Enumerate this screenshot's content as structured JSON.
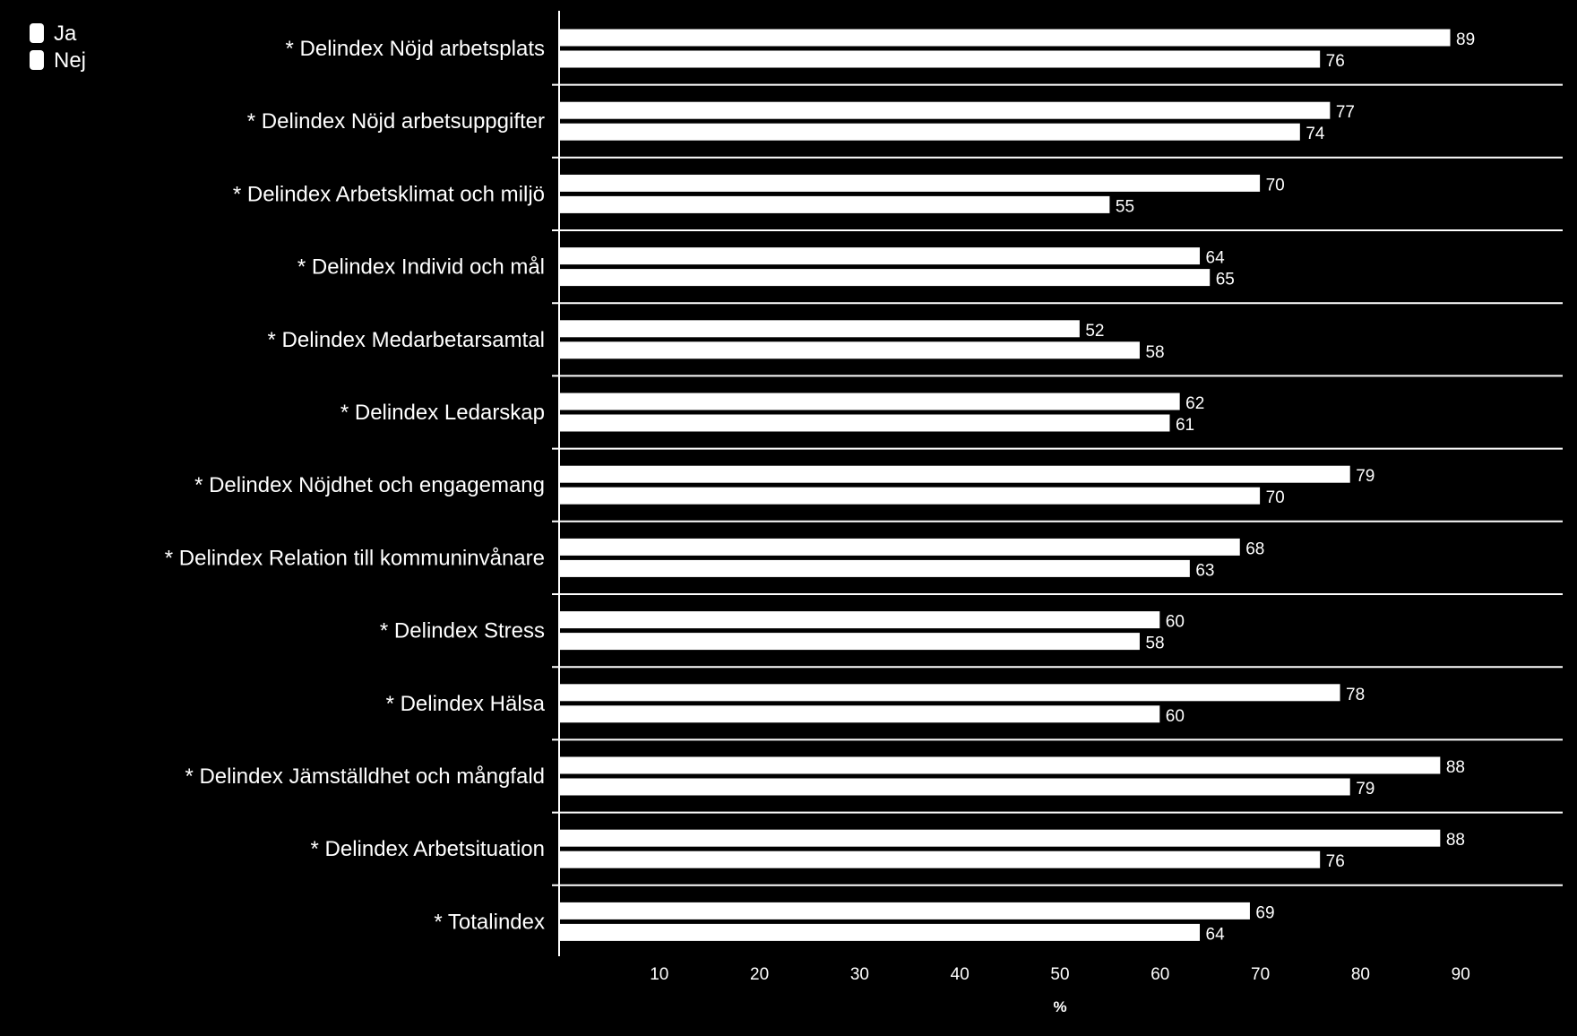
{
  "chart_data": {
    "type": "bar",
    "orientation": "horizontal",
    "categories": [
      "* Delindex Nöjd arbetsplats",
      "* Delindex Nöjd arbetsuppgifter",
      "* Delindex Arbetsklimat och miljö",
      "* Delindex Individ och mål",
      "* Delindex Medarbetarsamtal",
      "* Delindex Ledarskap",
      "* Delindex Nöjdhet och engagemang",
      "* Delindex Relation till kommuninvånare",
      "* Delindex Stress",
      "* Delindex Hälsa",
      "* Delindex Jämställdhet och mångfald",
      "* Delindex Arbetsituation",
      "* Totalindex"
    ],
    "series": [
      {
        "name": "Ja",
        "values": [
          89,
          77,
          70,
          64,
          52,
          62,
          79,
          68,
          60,
          78,
          88,
          88,
          69
        ]
      },
      {
        "name": "Nej",
        "values": [
          76,
          74,
          55,
          65,
          58,
          61,
          70,
          63,
          58,
          60,
          79,
          76,
          64
        ]
      }
    ],
    "xlabel": "%",
    "ylabel": "",
    "xlim": [
      0,
      100
    ],
    "xticks": [
      10,
      20,
      30,
      40,
      50,
      60,
      70,
      80,
      90
    ],
    "grid": false,
    "legend_position": "top-left",
    "colors": {
      "background": "#000000",
      "bar_fill": "#ffffff",
      "bar_stroke": "#000000",
      "text": "#ffffff",
      "axis": "#ffffff"
    }
  }
}
